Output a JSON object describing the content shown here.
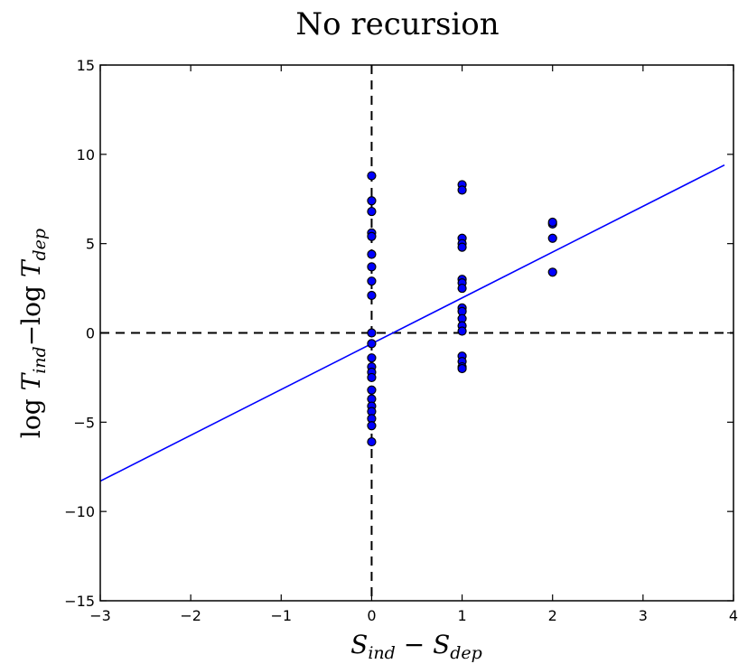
{
  "chart_data": {
    "type": "scatter",
    "title": "No recursion",
    "xlabel": {
      "main": "S",
      "sub1": "ind",
      "op": " − ",
      "main2": "S",
      "sub2": "dep"
    },
    "ylabel": {
      "pre": "log ",
      "main": "T",
      "sub1": "ind",
      "op": "−log ",
      "main2": "T",
      "sub2": "dep"
    },
    "xlim": [
      -3,
      4
    ],
    "ylim": [
      -15,
      15
    ],
    "xticks": [
      -3,
      -2,
      -1,
      0,
      1,
      2,
      3,
      4
    ],
    "yticks": [
      -15,
      -10,
      -5,
      0,
      5,
      10,
      15
    ],
    "xtick_labels": [
      "−3",
      "−2",
      "−1",
      "0",
      "1",
      "2",
      "3",
      "4"
    ],
    "ytick_labels": [
      "−15",
      "−10",
      "−5",
      "0",
      "5",
      "10",
      "15"
    ],
    "grid": false,
    "marker_color": "#0000ff",
    "line_color": "#0000ff",
    "reference_lines": {
      "x": 0,
      "y": 0,
      "style": "dashed",
      "color": "#000000"
    },
    "fit_line": {
      "x": [
        -3,
        3.9
      ],
      "y": [
        -8.3,
        9.4
      ]
    },
    "points": [
      {
        "x": 0,
        "y": 8.8
      },
      {
        "x": 0,
        "y": 7.4
      },
      {
        "x": 0,
        "y": 6.8
      },
      {
        "x": 0,
        "y": 5.6
      },
      {
        "x": 0,
        "y": 5.4
      },
      {
        "x": 0,
        "y": 4.4
      },
      {
        "x": 0,
        "y": 3.7
      },
      {
        "x": 0,
        "y": 2.9
      },
      {
        "x": 0,
        "y": 2.1
      },
      {
        "x": 0,
        "y": 0.0
      },
      {
        "x": 0,
        "y": -0.6
      },
      {
        "x": 0,
        "y": -1.4
      },
      {
        "x": 0,
        "y": -1.9
      },
      {
        "x": 0,
        "y": -2.2
      },
      {
        "x": 0,
        "y": -2.5
      },
      {
        "x": 0,
        "y": -3.2
      },
      {
        "x": 0,
        "y": -3.7
      },
      {
        "x": 0,
        "y": -4.1
      },
      {
        "x": 0,
        "y": -4.4
      },
      {
        "x": 0,
        "y": -4.8
      },
      {
        "x": 0,
        "y": -5.2
      },
      {
        "x": 0,
        "y": -6.1
      },
      {
        "x": 1,
        "y": 8.3
      },
      {
        "x": 1,
        "y": 8.0
      },
      {
        "x": 1,
        "y": 5.3
      },
      {
        "x": 1,
        "y": 5.0
      },
      {
        "x": 1,
        "y": 4.8
      },
      {
        "x": 1,
        "y": 3.0
      },
      {
        "x": 1,
        "y": 2.8
      },
      {
        "x": 1,
        "y": 2.5
      },
      {
        "x": 1,
        "y": 1.4
      },
      {
        "x": 1,
        "y": 1.2
      },
      {
        "x": 1,
        "y": 0.8
      },
      {
        "x": 1,
        "y": 0.4
      },
      {
        "x": 1,
        "y": 0.1
      },
      {
        "x": 1,
        "y": -1.3
      },
      {
        "x": 1,
        "y": -1.6
      },
      {
        "x": 1,
        "y": -1.9
      },
      {
        "x": 1,
        "y": -2.0
      },
      {
        "x": 2,
        "y": 6.1
      },
      {
        "x": 2,
        "y": 6.2
      },
      {
        "x": 2,
        "y": 5.3
      },
      {
        "x": 2,
        "y": 3.4
      }
    ]
  }
}
